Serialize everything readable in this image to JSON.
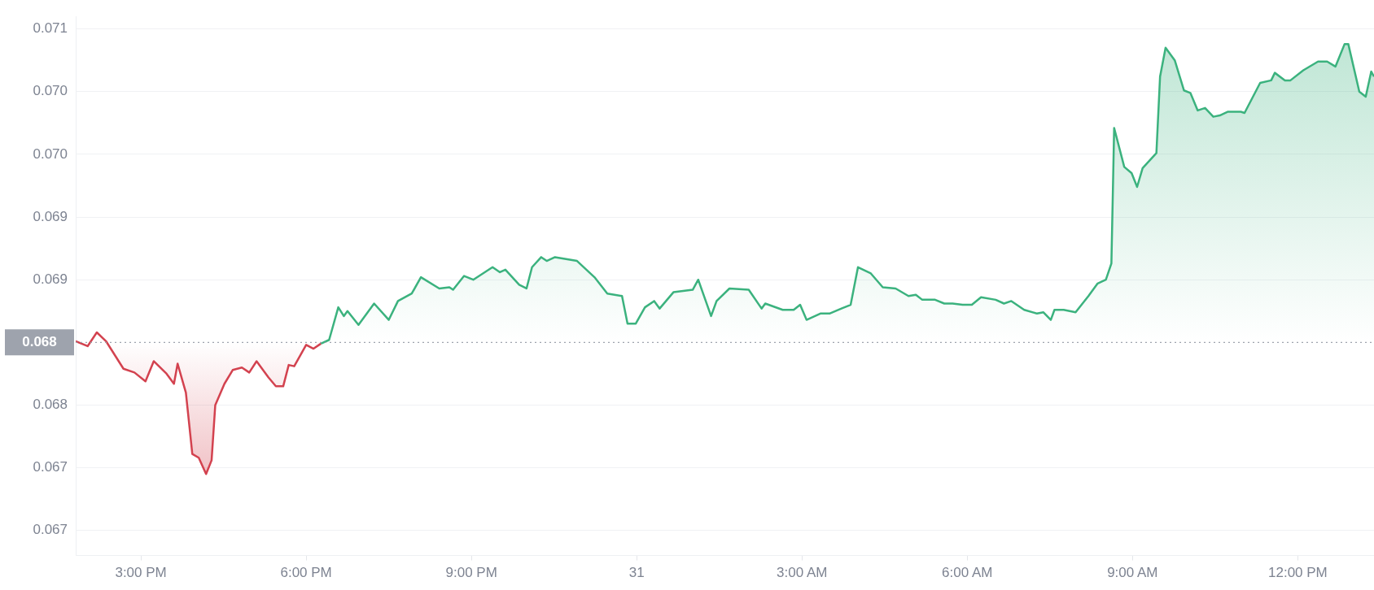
{
  "chart_data": {
    "type": "area",
    "xlim": [
      "--01-30T13:49",
      "--01-31T13:23"
    ],
    "xticks": [
      {
        "value": "--01-30T15:00",
        "label": "3:00 PM"
      },
      {
        "value": "--01-30T18:00",
        "label": "6:00 PM"
      },
      {
        "value": "--01-30T21:00",
        "label": "9:00 PM"
      },
      {
        "value": "--01-31T00:00",
        "label": "31"
      },
      {
        "value": "--01-31T03:00",
        "label": "3:00 AM"
      },
      {
        "value": "--01-31T06:00",
        "label": "6:00 AM"
      },
      {
        "value": "--01-31T09:00",
        "label": "9:00 AM"
      },
      {
        "value": "--01-31T12:00",
        "label": "12:00 PM"
      }
    ],
    "ylim": [
      0.0668,
      0.0711
    ],
    "yticks": [
      {
        "value": 0.071,
        "label": "0.071"
      },
      {
        "value": 0.0705,
        "label": "0.070"
      },
      {
        "value": 0.07,
        "label": "0.070"
      },
      {
        "value": 0.0695,
        "label": "0.069"
      },
      {
        "value": 0.069,
        "label": "0.069"
      },
      {
        "value": 0.068,
        "label": "0.068"
      },
      {
        "value": 0.0675,
        "label": "0.067"
      },
      {
        "value": 0.067,
        "label": "0.067"
      }
    ],
    "grid": "y",
    "marker": "none",
    "ref_lines": [
      {
        "axis": "y",
        "value": 0.0685,
        "label": "0.068",
        "line_style": "dotted",
        "color": "#9ea3ad"
      }
    ],
    "series": [
      {
        "color": "#d3424f",
        "x": [
          "--01-30T13:49",
          "--01-30T14:02",
          "--01-30T14:12",
          "--01-30T14:22",
          "--01-30T14:41",
          "--01-30T14:53",
          "--01-30T15:05",
          "--01-30T15:14",
          "--01-30T15:28",
          "--01-30T15:36",
          "--01-30T15:40",
          "--01-30T15:49",
          "--01-30T15:56",
          "--01-30T16:03",
          "--01-30T16:11",
          "--01-30T16:17",
          "--01-30T16:21",
          "--01-30T16:31",
          "--01-30T16:40",
          "--01-30T16:50",
          "--01-30T16:58",
          "--01-30T17:06",
          "--01-30T17:19",
          "--01-30T17:27",
          "--01-30T17:35",
          "--01-30T17:41",
          "--01-30T17:47",
          "--01-30T18:00",
          "--01-30T18:08",
          "--01-30T18:16"
        ],
        "values": [
          0.06851,
          0.06847,
          0.06858,
          0.06851,
          0.06829,
          0.06826,
          0.06819,
          0.06835,
          0.06825,
          0.06817,
          0.06833,
          0.0681,
          0.06761,
          0.06758,
          0.06745,
          0.06756,
          0.068,
          0.06817,
          0.06828,
          0.0683,
          0.06826,
          0.06835,
          0.06822,
          0.06815,
          0.06815,
          0.06832,
          0.06831,
          0.06848,
          0.06845,
          0.06849
        ]
      },
      {
        "color": "#3bb27e",
        "x": [
          "--01-30T18:16",
          "--01-30T18:25",
          "--01-30T18:35",
          "--01-30T18:41",
          "--01-30T18:45",
          "--01-30T18:57",
          "--01-30T19:14",
          "--01-30T19:30",
          "--01-30T19:40",
          "--01-30T19:55",
          "--01-30T20:05",
          "--01-30T20:25",
          "--01-30T20:36",
          "--01-30T20:40",
          "--01-30T20:52",
          "--01-30T21:02",
          "--01-30T21:23",
          "--01-30T21:31",
          "--01-30T21:37",
          "--01-30T21:52",
          "--01-30T22:00",
          "--01-30T22:06",
          "--01-30T22:16",
          "--01-30T22:22",
          "--01-30T22:31",
          "--01-30T22:47",
          "--01-30T22:55",
          "--01-30T23:14",
          "--01-30T23:28",
          "--01-30T23:44",
          "--01-30T23:50",
          "--01-30T23:59",
          "--01-31T00:09",
          "--01-31T00:19",
          "--01-31T00:25",
          "--01-31T00:40",
          "--01-31T01:01",
          "--01-31T01:07",
          "--01-31T01:21",
          "--01-31T01:27",
          "--01-31T01:41",
          "--01-31T02:02",
          "--01-31T02:16",
          "--01-31T02:20",
          "--01-31T02:39",
          "--01-31T02:51",
          "--01-31T02:58",
          "--01-31T03:05",
          "--01-31T03:20",
          "--01-31T03:30",
          "--01-31T03:43",
          "--01-31T03:53",
          "--01-31T04:01",
          "--01-31T04:15",
          "--01-31T04:28",
          "--01-31T04:42",
          "--01-31T04:56",
          "--01-31T05:04",
          "--01-31T05:11",
          "--01-31T05:25",
          "--01-31T05:35",
          "--01-31T05:44",
          "--01-31T05:55",
          "--01-31T06:05",
          "--01-31T06:15",
          "--01-31T06:31",
          "--01-31T06:40",
          "--01-31T06:48",
          "--01-31T07:02",
          "--01-31T07:16",
          "--01-31T07:23",
          "--01-31T07:31",
          "--01-31T07:35",
          "--01-31T07:45",
          "--01-31T07:58",
          "--01-31T08:12",
          "--01-31T08:22",
          "--01-31T08:31",
          "--01-31T08:37",
          "--01-31T08:40",
          "--01-31T08:51",
          "--01-31T08:59",
          "--01-31T09:05",
          "--01-31T09:11",
          "--01-31T09:26",
          "--01-31T09:30",
          "--01-31T09:36",
          "--01-31T09:46",
          "--01-31T09:56",
          "--01-31T10:03",
          "--01-31T10:11",
          "--01-31T10:19",
          "--01-31T10:28",
          "--01-31T10:35",
          "--01-31T10:44",
          "--01-31T10:58",
          "--01-31T11:02",
          "--01-31T11:19",
          "--01-31T11:31",
          "--01-31T11:35",
          "--01-31T11:46",
          "--01-31T11:52",
          "--01-31T12:06",
          "--01-31T12:22",
          "--01-31T12:32",
          "--01-31T12:41",
          "--01-31T12:51",
          "--01-31T12:55",
          "--01-31T13:07",
          "--01-31T13:14",
          "--01-31T13:20",
          "--01-31T13:23"
        ],
        "values": [
          0.06849,
          0.06852,
          0.06878,
          0.06871,
          0.06875,
          0.06864,
          0.06881,
          0.06868,
          0.06883,
          0.06889,
          0.06902,
          0.06893,
          0.06894,
          0.06892,
          0.06903,
          0.069,
          0.0691,
          0.06906,
          0.06908,
          0.06896,
          0.06893,
          0.0691,
          0.06918,
          0.06915,
          0.06918,
          0.06916,
          0.06915,
          0.06902,
          0.06889,
          0.06887,
          0.06865,
          0.06865,
          0.06878,
          0.06883,
          0.06877,
          0.0689,
          0.06892,
          0.069,
          0.06871,
          0.06883,
          0.06893,
          0.06892,
          0.06877,
          0.06881,
          0.06876,
          0.06876,
          0.0688,
          0.06868,
          0.06873,
          0.06873,
          0.06877,
          0.0688,
          0.0691,
          0.06905,
          0.06894,
          0.06893,
          0.06887,
          0.06888,
          0.06884,
          0.06884,
          0.06881,
          0.06881,
          0.0688,
          0.0688,
          0.06886,
          0.06884,
          0.06881,
          0.06883,
          0.06876,
          0.06873,
          0.06874,
          0.06868,
          0.06876,
          0.06876,
          0.06874,
          0.06887,
          0.06897,
          0.069,
          0.06913,
          0.07021,
          0.0699,
          0.06985,
          0.06974,
          0.06989,
          0.07001,
          0.07062,
          0.07085,
          0.07075,
          0.07051,
          0.07049,
          0.07035,
          0.07037,
          0.0703,
          0.07031,
          0.07034,
          0.07034,
          0.07033,
          0.07057,
          0.07059,
          0.07065,
          0.07059,
          0.07059,
          0.07067,
          0.07074,
          0.07074,
          0.0707,
          0.07088,
          0.07088,
          0.0705,
          0.07046,
          0.07066,
          0.07062
        ]
      }
    ]
  }
}
